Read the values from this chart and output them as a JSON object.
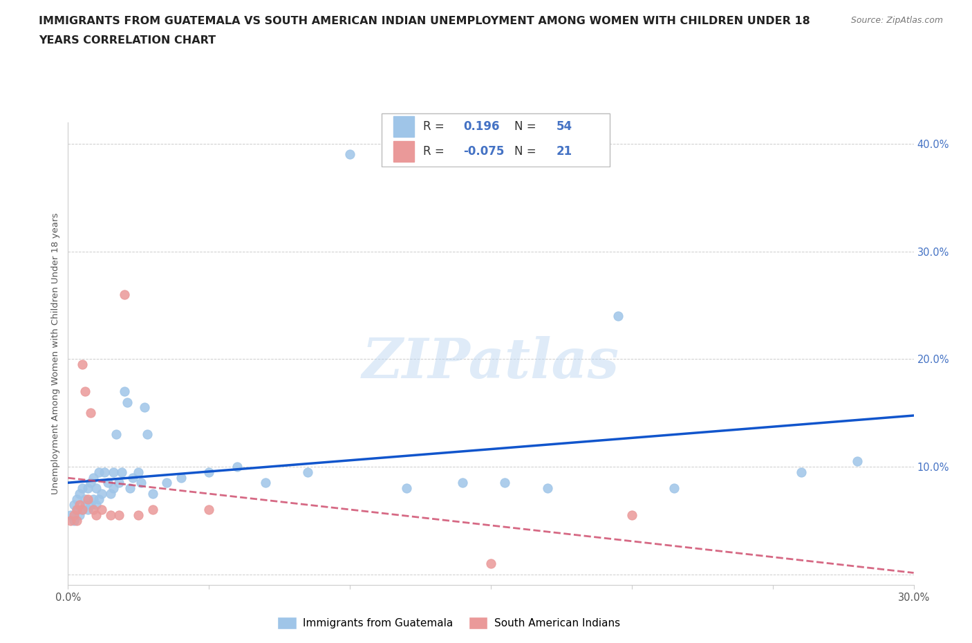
{
  "title_line1": "IMMIGRANTS FROM GUATEMALA VS SOUTH AMERICAN INDIAN UNEMPLOYMENT AMONG WOMEN WITH CHILDREN UNDER 18",
  "title_line2": "YEARS CORRELATION CHART",
  "source": "Source: ZipAtlas.com",
  "ylabel": "Unemployment Among Women with Children Under 18 years",
  "watermark": "ZIPatlas",
  "xlim": [
    0.0,
    0.3
  ],
  "ylim": [
    -0.01,
    0.42
  ],
  "xticks": [
    0.0,
    0.05,
    0.1,
    0.15,
    0.2,
    0.25,
    0.3
  ],
  "yticks": [
    0.0,
    0.1,
    0.2,
    0.3,
    0.4
  ],
  "ytick_labels": [
    "",
    "10.0%",
    "20.0%",
    "30.0%",
    "40.0%"
  ],
  "xtick_labels": [
    "0.0%",
    "",
    "",
    "",
    "",
    "",
    "30.0%"
  ],
  "blue_color": "#9fc5e8",
  "pink_color": "#ea9999",
  "blue_line_color": "#1155cc",
  "pink_line_color": "#cc4466",
  "grid_color": "#aaaaaa",
  "tick_color": "#4472c4",
  "R_blue": 0.196,
  "N_blue": 54,
  "R_pink": -0.075,
  "N_pink": 21,
  "blue_x": [
    0.001,
    0.002,
    0.002,
    0.003,
    0.003,
    0.004,
    0.004,
    0.005,
    0.005,
    0.006,
    0.006,
    0.007,
    0.007,
    0.008,
    0.008,
    0.009,
    0.009,
    0.01,
    0.01,
    0.011,
    0.011,
    0.012,
    0.013,
    0.014,
    0.015,
    0.016,
    0.016,
    0.017,
    0.018,
    0.019,
    0.02,
    0.021,
    0.022,
    0.023,
    0.025,
    0.026,
    0.027,
    0.028,
    0.03,
    0.035,
    0.04,
    0.05,
    0.06,
    0.07,
    0.085,
    0.1,
    0.12,
    0.14,
    0.155,
    0.17,
    0.195,
    0.215,
    0.26,
    0.28
  ],
  "blue_y": [
    0.055,
    0.05,
    0.065,
    0.06,
    0.07,
    0.055,
    0.075,
    0.06,
    0.08,
    0.065,
    0.07,
    0.06,
    0.08,
    0.065,
    0.085,
    0.07,
    0.09,
    0.065,
    0.08,
    0.07,
    0.095,
    0.075,
    0.095,
    0.085,
    0.075,
    0.08,
    0.095,
    0.13,
    0.085,
    0.095,
    0.17,
    0.16,
    0.08,
    0.09,
    0.095,
    0.085,
    0.155,
    0.13,
    0.075,
    0.085,
    0.09,
    0.095,
    0.1,
    0.085,
    0.095,
    0.39,
    0.08,
    0.085,
    0.085,
    0.08,
    0.24,
    0.08,
    0.095,
    0.105
  ],
  "pink_x": [
    0.001,
    0.002,
    0.003,
    0.003,
    0.004,
    0.005,
    0.005,
    0.006,
    0.007,
    0.008,
    0.009,
    0.01,
    0.012,
    0.015,
    0.018,
    0.02,
    0.025,
    0.03,
    0.05,
    0.15,
    0.2
  ],
  "pink_y": [
    0.05,
    0.055,
    0.05,
    0.06,
    0.065,
    0.06,
    0.195,
    0.17,
    0.07,
    0.15,
    0.06,
    0.055,
    0.06,
    0.055,
    0.055,
    0.26,
    0.055,
    0.06,
    0.06,
    0.01,
    0.055
  ]
}
